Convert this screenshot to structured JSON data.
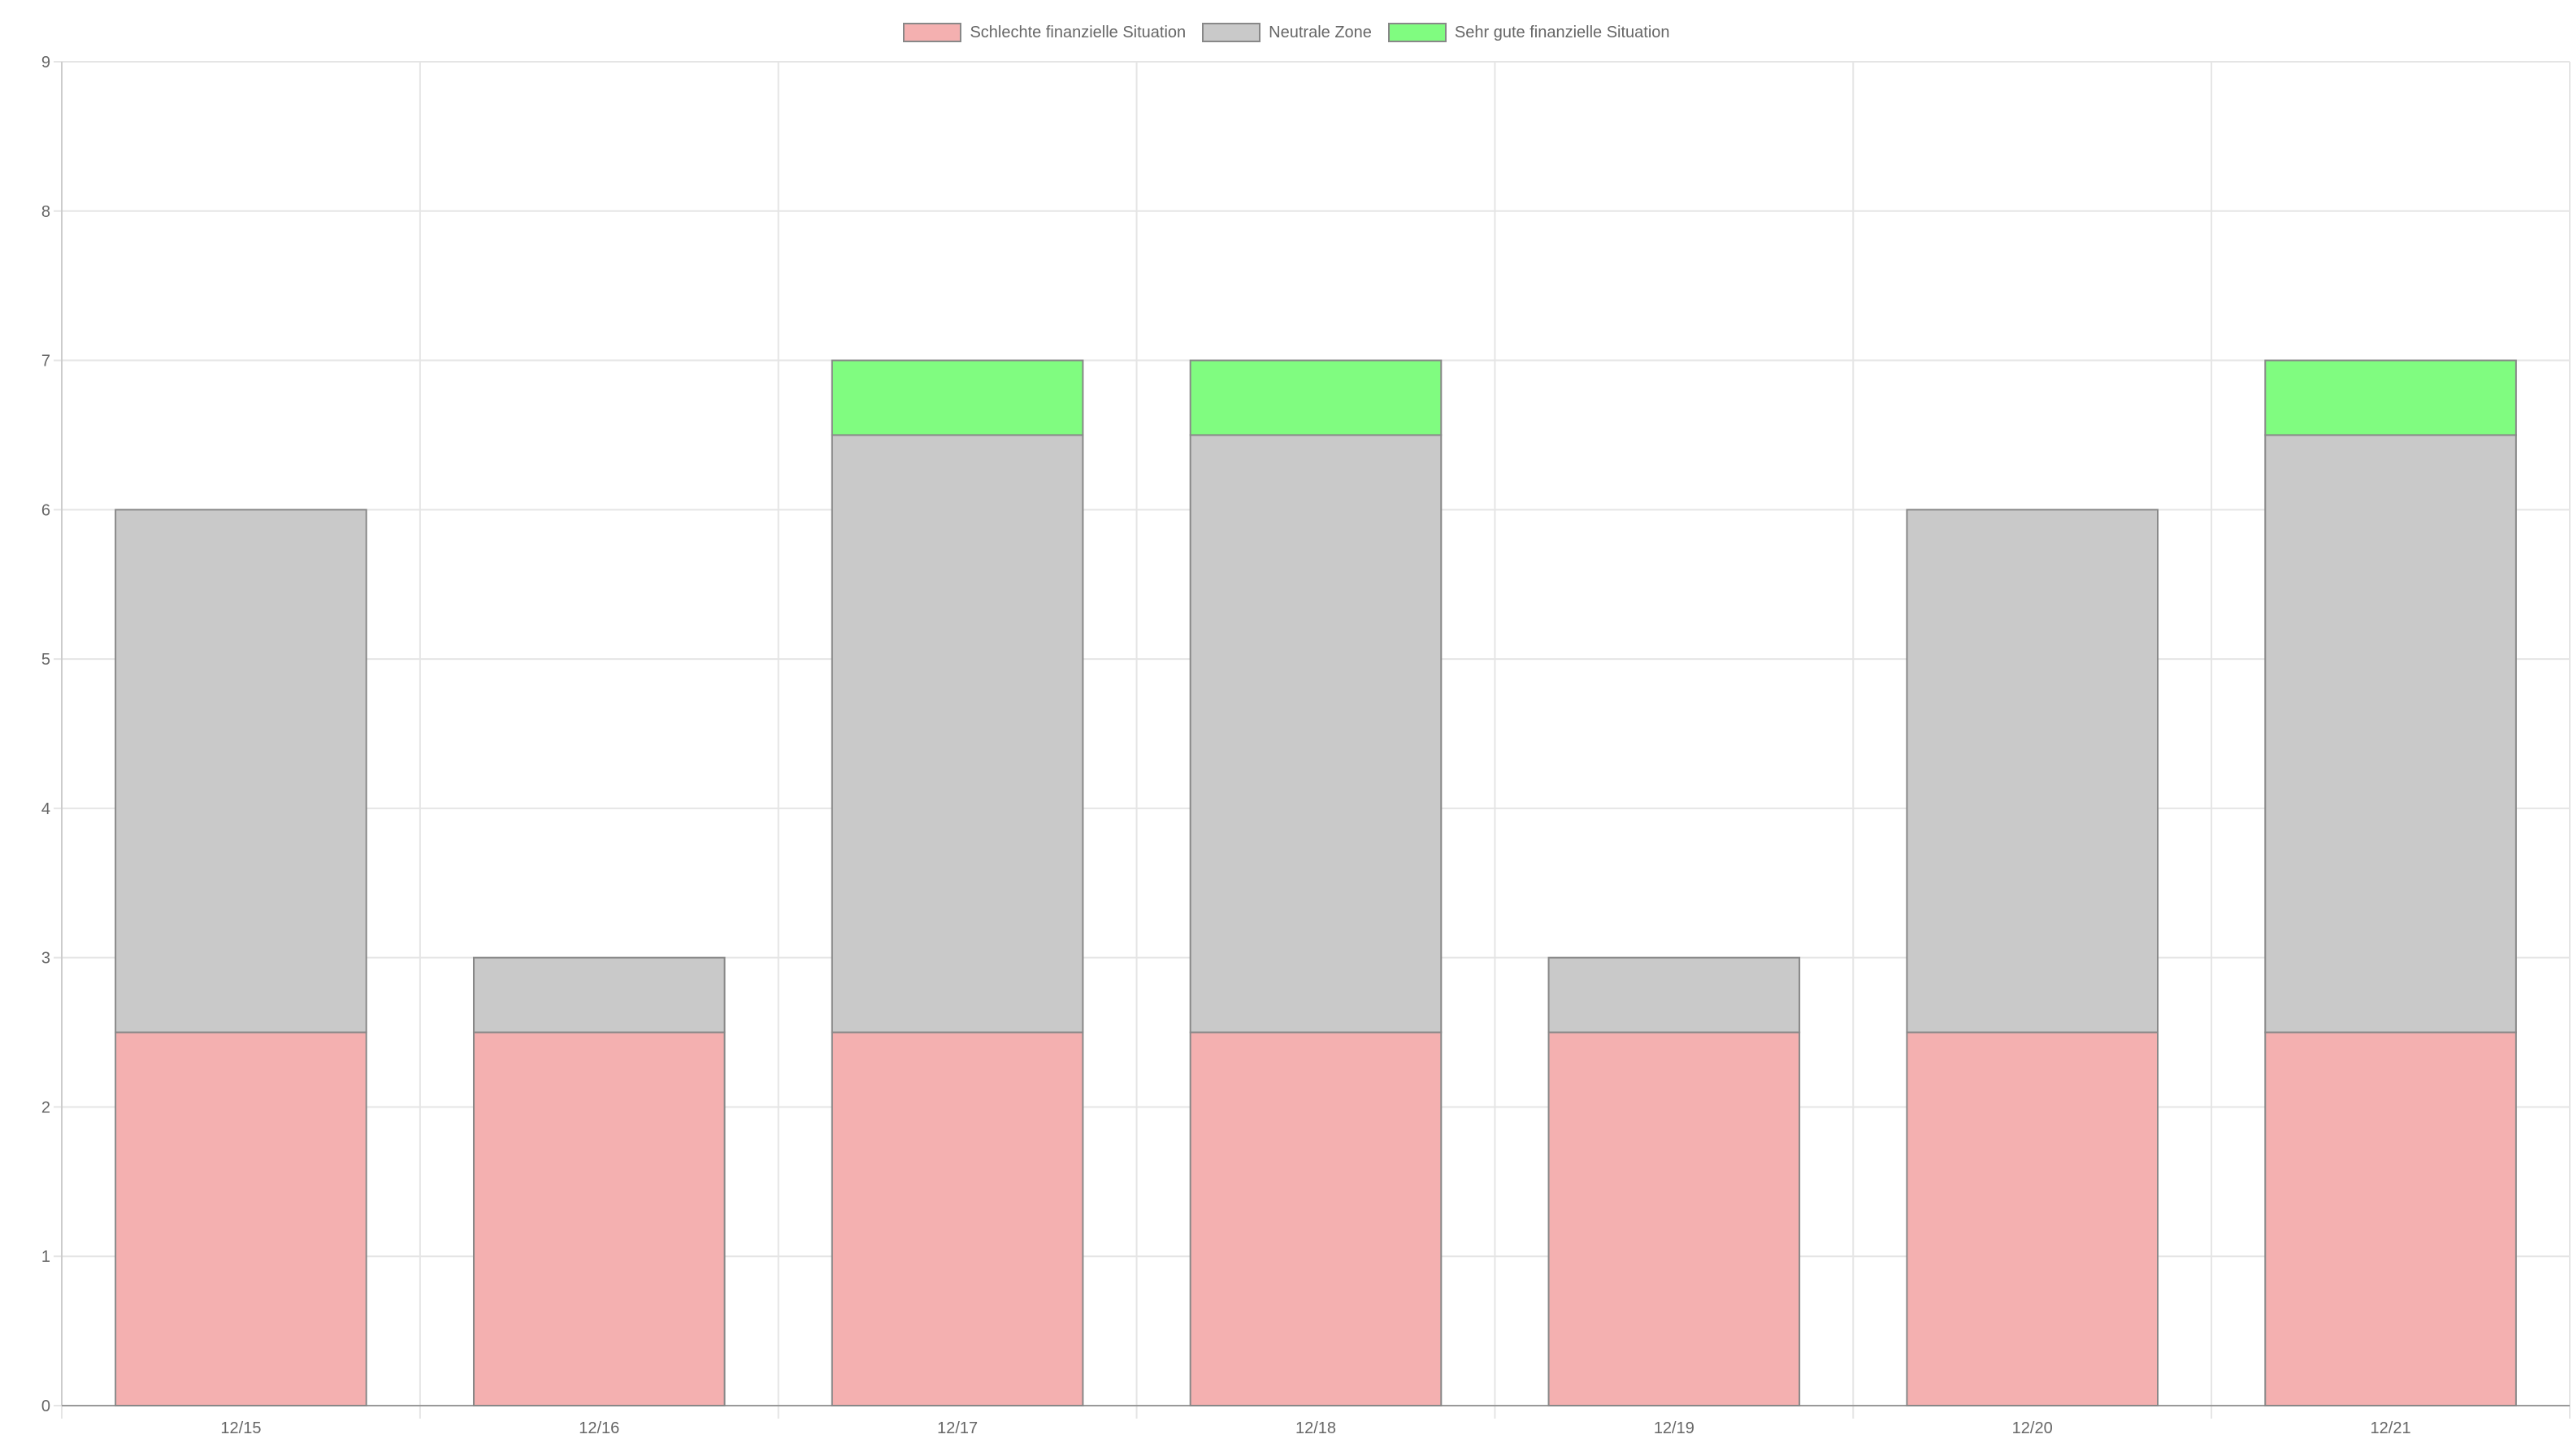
{
  "chart_data": {
    "type": "bar",
    "stacked": true,
    "title": "",
    "xlabel": "",
    "ylabel": "",
    "categories": [
      "12/15",
      "12/16",
      "12/17",
      "12/18",
      "12/19",
      "12/20",
      "12/21"
    ],
    "ylim": [
      0,
      9
    ],
    "yticks": [
      "0",
      "1",
      "2",
      "3",
      "4",
      "5",
      "6",
      "7",
      "8",
      "9"
    ],
    "grid": true,
    "legend_position": "top-center",
    "series": [
      {
        "name": "Schlechte finanzielle Situation",
        "color": "#f4b0b0",
        "values": [
          2.5,
          2.5,
          2.5,
          2.5,
          2.5,
          2.5,
          2.5
        ]
      },
      {
        "name": "Neutrale Zone",
        "color": "#c9c9c9",
        "values": [
          3.5,
          0.5,
          4,
          4,
          0.5,
          3.5,
          4
        ]
      },
      {
        "name": "Sehr gute finanzielle Situation",
        "color": "#80fc80",
        "values": [
          0,
          0,
          0.5,
          0.5,
          0,
          0,
          0.5
        ]
      }
    ]
  }
}
